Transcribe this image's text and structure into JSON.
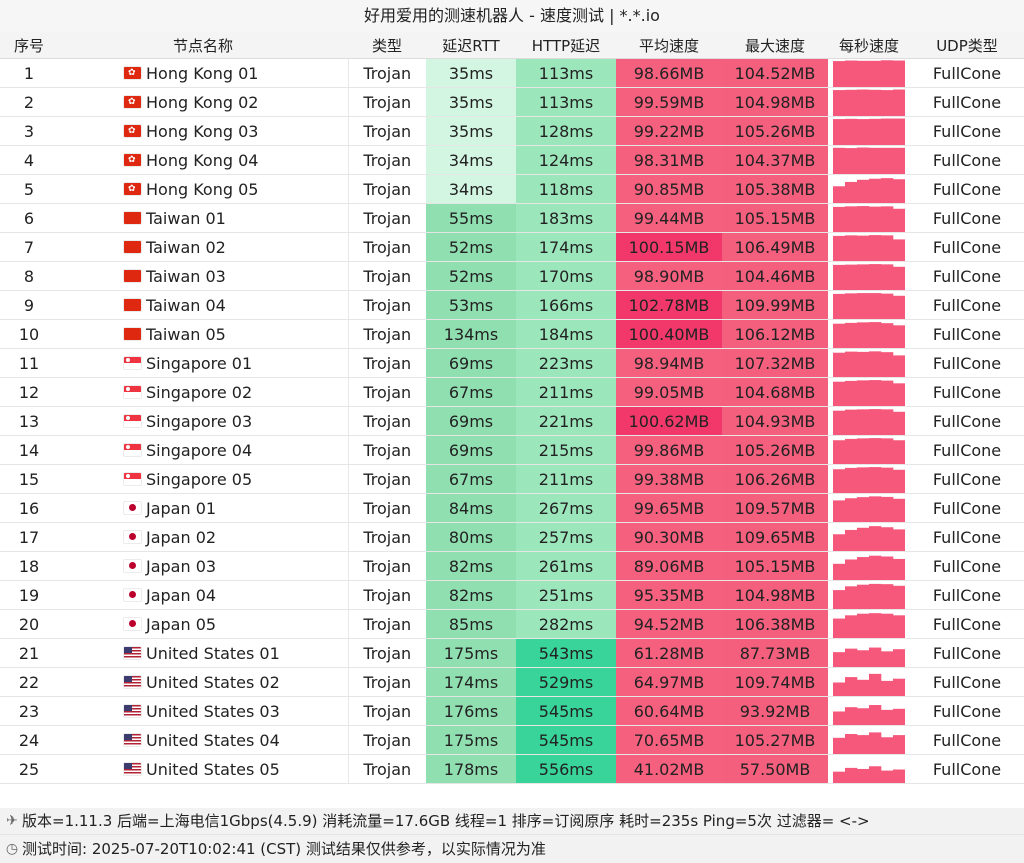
{
  "title": "好用爱用的测速机器人 - 速度测试 | *.*.io",
  "headers": {
    "idx": "序号",
    "name": "节点名称",
    "type": "类型",
    "rtt": "延迟RTT",
    "http": "HTTP延迟",
    "avg": "平均速度",
    "max": "最大速度",
    "persec": "每秒速度",
    "udp": "UDP类型"
  },
  "colors": {
    "rtt_light": "#d3f6e2",
    "rtt_mid": "#90dfb1",
    "http_mid": "#9ce6bc",
    "http_high": "#38d49a",
    "avg_mid": "#f6607f",
    "avg_high": "#f2386a",
    "max_mid": "#f45f7e",
    "spark": "#f6587c"
  },
  "rows": [
    {
      "idx": "1",
      "flag": "hk",
      "name": "Hong Kong 01",
      "type": "Trojan",
      "rtt": "35ms",
      "http": "113ms",
      "avg": "98.66MB",
      "max": "104.52MB",
      "udp": "FullCone",
      "speeds": [
        0.96,
        0.98,
        0.97,
        0.97,
        0.99,
        0.98
      ]
    },
    {
      "idx": "2",
      "flag": "hk",
      "name": "Hong Kong 02",
      "type": "Trojan",
      "rtt": "35ms",
      "http": "113ms",
      "avg": "99.59MB",
      "max": "104.98MB",
      "udp": "FullCone",
      "speeds": [
        0.96,
        0.97,
        0.98,
        0.97,
        0.96,
        0.98
      ]
    },
    {
      "idx": "3",
      "flag": "hk",
      "name": "Hong Kong 03",
      "type": "Trojan",
      "rtt": "35ms",
      "http": "128ms",
      "avg": "99.22MB",
      "max": "105.26MB",
      "udp": "FullCone",
      "speeds": [
        0.96,
        0.97,
        0.96,
        0.97,
        0.98,
        0.98
      ]
    },
    {
      "idx": "4",
      "flag": "hk",
      "name": "Hong Kong 04",
      "type": "Trojan",
      "rtt": "34ms",
      "http": "124ms",
      "avg": "98.31MB",
      "max": "104.37MB",
      "udp": "FullCone",
      "speeds": [
        0.97,
        0.96,
        0.98,
        0.97,
        0.97,
        0.97
      ]
    },
    {
      "idx": "5",
      "flag": "hk",
      "name": "Hong Kong 05",
      "type": "Trojan",
      "rtt": "34ms",
      "http": "118ms",
      "avg": "90.85MB",
      "max": "105.38MB",
      "udp": "FullCone",
      "speeds": [
        0.62,
        0.78,
        0.86,
        0.9,
        0.92,
        0.88
      ]
    },
    {
      "idx": "6",
      "flag": "tw",
      "name": "Taiwan 01",
      "type": "Trojan",
      "rtt": "55ms",
      "http": "183ms",
      "avg": "99.44MB",
      "max": "105.15MB",
      "udp": "FullCone",
      "speeds": [
        0.93,
        0.95,
        0.96,
        0.94,
        0.95,
        0.86
      ]
    },
    {
      "idx": "7",
      "flag": "tw",
      "name": "Taiwan 02",
      "type": "Trojan",
      "rtt": "52ms",
      "http": "174ms",
      "avg": "100.15MB",
      "max": "106.49MB",
      "udp": "FullCone",
      "speeds": [
        0.93,
        0.95,
        0.94,
        0.96,
        0.95,
        0.8
      ]
    },
    {
      "idx": "8",
      "flag": "tw",
      "name": "Taiwan 03",
      "type": "Trojan",
      "rtt": "52ms",
      "http": "170ms",
      "avg": "98.90MB",
      "max": "104.46MB",
      "udp": "FullCone",
      "speeds": [
        0.93,
        0.94,
        0.95,
        0.96,
        0.95,
        0.86
      ]
    },
    {
      "idx": "9",
      "flag": "tw",
      "name": "Taiwan 04",
      "type": "Trojan",
      "rtt": "53ms",
      "http": "166ms",
      "avg": "102.78MB",
      "max": "109.99MB",
      "udp": "FullCone",
      "speeds": [
        0.93,
        0.95,
        0.96,
        0.96,
        0.94,
        0.86
      ]
    },
    {
      "idx": "10",
      "flag": "tw",
      "name": "Taiwan 05",
      "type": "Trojan",
      "rtt": "134ms",
      "http": "184ms",
      "avg": "100.40MB",
      "max": "106.12MB",
      "udp": "FullCone",
      "speeds": [
        0.9,
        0.93,
        0.95,
        0.96,
        0.92,
        0.84
      ]
    },
    {
      "idx": "11",
      "flag": "sg",
      "name": "Singapore 01",
      "type": "Trojan",
      "rtt": "69ms",
      "http": "223ms",
      "avg": "98.94MB",
      "max": "107.32MB",
      "udp": "FullCone",
      "speeds": [
        0.9,
        0.94,
        0.93,
        0.95,
        0.92,
        0.8
      ]
    },
    {
      "idx": "12",
      "flag": "sg",
      "name": "Singapore 02",
      "type": "Trojan",
      "rtt": "67ms",
      "http": "211ms",
      "avg": "99.05MB",
      "max": "104.68MB",
      "udp": "FullCone",
      "speeds": [
        0.9,
        0.93,
        0.95,
        0.96,
        0.94,
        0.84
      ]
    },
    {
      "idx": "13",
      "flag": "sg",
      "name": "Singapore 03",
      "type": "Trojan",
      "rtt": "69ms",
      "http": "221ms",
      "avg": "100.62MB",
      "max": "104.93MB",
      "udp": "FullCone",
      "speeds": [
        0.9,
        0.94,
        0.95,
        0.96,
        0.95,
        0.86
      ]
    },
    {
      "idx": "14",
      "flag": "sg",
      "name": "Singapore 04",
      "type": "Trojan",
      "rtt": "69ms",
      "http": "215ms",
      "avg": "99.86MB",
      "max": "105.26MB",
      "udp": "FullCone",
      "speeds": [
        0.88,
        0.93,
        0.95,
        0.96,
        0.95,
        0.88
      ]
    },
    {
      "idx": "15",
      "flag": "sg",
      "name": "Singapore 05",
      "type": "Trojan",
      "rtt": "67ms",
      "http": "211ms",
      "avg": "99.38MB",
      "max": "106.26MB",
      "udp": "FullCone",
      "speeds": [
        0.88,
        0.93,
        0.95,
        0.96,
        0.94,
        0.86
      ]
    },
    {
      "idx": "16",
      "flag": "jp",
      "name": "Japan 01",
      "type": "Trojan",
      "rtt": "84ms",
      "http": "267ms",
      "avg": "99.65MB",
      "max": "109.57MB",
      "udp": "FullCone",
      "speeds": [
        0.8,
        0.88,
        0.92,
        0.95,
        0.93,
        0.86
      ]
    },
    {
      "idx": "17",
      "flag": "jp",
      "name": "Japan 02",
      "type": "Trojan",
      "rtt": "80ms",
      "http": "257ms",
      "avg": "90.30MB",
      "max": "109.65MB",
      "udp": "FullCone",
      "speeds": [
        0.62,
        0.78,
        0.86,
        0.92,
        0.88,
        0.8
      ]
    },
    {
      "idx": "18",
      "flag": "jp",
      "name": "Japan 03",
      "type": "Trojan",
      "rtt": "82ms",
      "http": "261ms",
      "avg": "89.06MB",
      "max": "105.15MB",
      "udp": "FullCone",
      "speeds": [
        0.6,
        0.76,
        0.85,
        0.9,
        0.87,
        0.78
      ]
    },
    {
      "idx": "19",
      "flag": "jp",
      "name": "Japan 04",
      "type": "Trojan",
      "rtt": "82ms",
      "http": "251ms",
      "avg": "95.35MB",
      "max": "104.98MB",
      "udp": "FullCone",
      "speeds": [
        0.7,
        0.84,
        0.9,
        0.93,
        0.92,
        0.86
      ]
    },
    {
      "idx": "20",
      "flag": "jp",
      "name": "Japan 05",
      "type": "Trojan",
      "rtt": "85ms",
      "http": "282ms",
      "avg": "94.52MB",
      "max": "106.38MB",
      "udp": "FullCone",
      "speeds": [
        0.72,
        0.84,
        0.9,
        0.92,
        0.9,
        0.84
      ]
    },
    {
      "idx": "21",
      "flag": "us",
      "name": "United States 01",
      "type": "Trojan",
      "rtt": "175ms",
      "http": "543ms",
      "avg": "61.28MB",
      "max": "87.73MB",
      "udp": "FullCone",
      "speeds": [
        0.55,
        0.68,
        0.62,
        0.72,
        0.58,
        0.66
      ]
    },
    {
      "idx": "22",
      "flag": "us",
      "name": "United States 02",
      "type": "Trojan",
      "rtt": "174ms",
      "http": "529ms",
      "avg": "64.97MB",
      "max": "109.74MB",
      "udp": "FullCone",
      "speeds": [
        0.5,
        0.7,
        0.6,
        0.82,
        0.56,
        0.64
      ]
    },
    {
      "idx": "23",
      "flag": "us",
      "name": "United States 03",
      "type": "Trojan",
      "rtt": "176ms",
      "http": "545ms",
      "avg": "60.64MB",
      "max": "93.92MB",
      "udp": "FullCone",
      "speeds": [
        0.5,
        0.66,
        0.62,
        0.74,
        0.56,
        0.6
      ]
    },
    {
      "idx": "24",
      "flag": "us",
      "name": "United States 04",
      "type": "Trojan",
      "rtt": "175ms",
      "http": "545ms",
      "avg": "70.65MB",
      "max": "105.27MB",
      "udp": "FullCone",
      "speeds": [
        0.6,
        0.74,
        0.7,
        0.8,
        0.62,
        0.7
      ]
    },
    {
      "idx": "25",
      "flag": "us",
      "name": "United States 05",
      "type": "Trojan",
      "rtt": "178ms",
      "http": "556ms",
      "avg": "41.02MB",
      "max": "57.50MB",
      "udp": "FullCone",
      "speeds": [
        0.42,
        0.56,
        0.52,
        0.62,
        0.46,
        0.5
      ]
    }
  ],
  "footer": {
    "line1": "版本=1.11.3  后端=上海电信1Gbps(4.5.9) 消耗流量=17.6GB  线程=1  排序=订阅原序  耗时=235s  Ping=5次  过滤器= <->",
    "line1_icon": "rocket-icon",
    "line2": "测试时间: 2025-07-20T10:02:41 (CST)  测试结果仅供参考，以实际情况为准",
    "line2_icon": "clock-icon"
  }
}
